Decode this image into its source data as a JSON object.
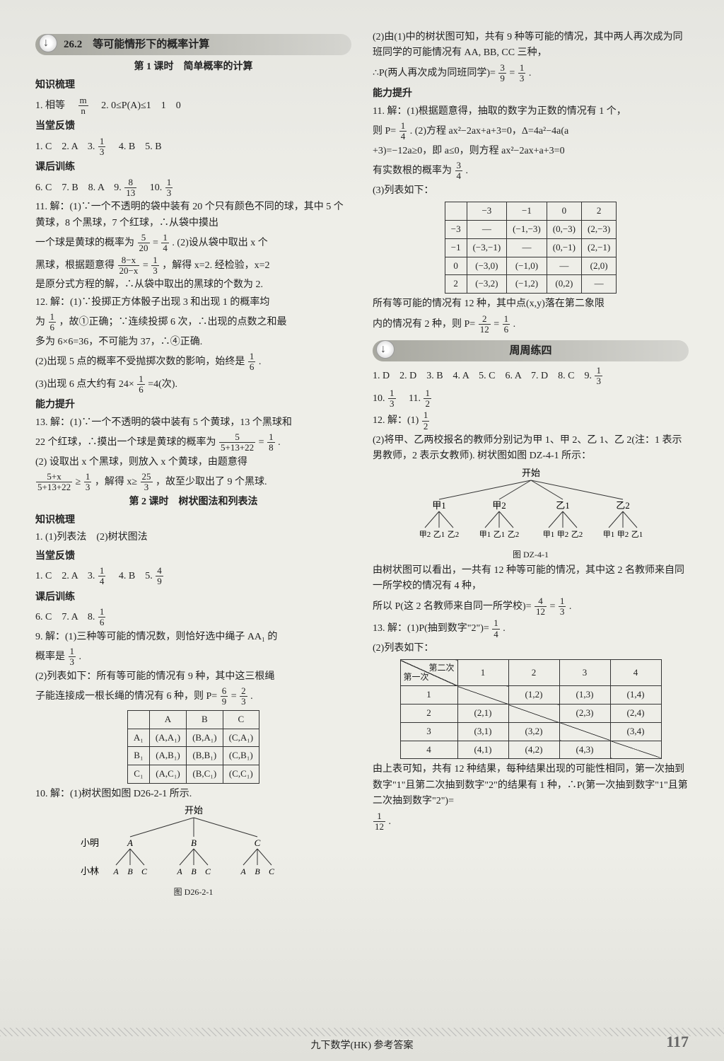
{
  "left": {
    "banner_arrow": true,
    "banner": "26.2　等可能情形下的概率计算",
    "sub1": "第 1 课时　简单概率的计算",
    "h_zhishi": "知识梳理",
    "l1a": "1. 相等　",
    "l1b": "　2. 0≤P(A)≤1　1　0",
    "frac_mn_n": "m",
    "frac_mn_d": "n",
    "h_dangtang": "当堂反馈",
    "l2": "1. C　2. A　3. ",
    "l2_fn": "1",
    "l2_fd": "3",
    "l2b": "　4. B　5. B",
    "h_kehou": "课后训练",
    "l3": "6. C　7. B　8. A　9. ",
    "l3_fn": "8",
    "l3_fd": "13",
    "l3b": "　10. ",
    "l3c_fn": "1",
    "l3c_fd": "3",
    "p11a": "11. 解：(1)∵一个不透明的袋中装有 20 个只有颜色不同的球，其中 5 个黄球，8 个黑球，7 个红球，∴从袋中摸出",
    "p11b_pre": "一个球是黄球的概率为",
    "p11b_f1n": "5",
    "p11b_f1d": "20",
    "p11b_mid": "=",
    "p11b_f2n": "1",
    "p11b_f2d": "4",
    "p11b_post": ". (2)设从袋中取出 x 个",
    "p11c_pre": "黑球，根据题意得",
    "p11c_f1n": "8−x",
    "p11c_f1d": "20−x",
    "p11c_mid": "=",
    "p11c_f2n": "1",
    "p11c_f2d": "3",
    "p11c_post": "，解得 x=2. 经检验，x=2",
    "p11d": "是原分式方程的解，∴从袋中取出的黑球的个数为 2.",
    "p12a": "12. 解：(1)∵投掷正方体骰子出现 3 和出现 1 的概率均",
    "p12b_pre": "为",
    "p12b_fn": "1",
    "p12b_fd": "6",
    "p12b_post": "，故①正确；∵连续投掷 6 次，∴出现的点数之和最",
    "p12c": "多为 6×6=36，不可能为 37，∴④正确.",
    "p12d_pre": "(2)出现 5 点的概率不受抛掷次数的影响，始终是",
    "p12d_fn": "1",
    "p12d_fd": "6",
    "p12d_post": ".",
    "p12e_pre": "(3)出现 6 点大约有 24×",
    "p12e_fn": "1",
    "p12e_fd": "6",
    "p12e_post": "=4(次).",
    "h_nengli": "能力提升",
    "p13a": "13. 解：(1)∵一个不透明的袋中装有 5 个黄球，13 个黑球和",
    "p13b_pre": "22 个红球，∴摸出一个球是黄球的概率为",
    "p13b_f1n": "5",
    "p13b_f1d": "5+13+22",
    "p13b_mid": "=",
    "p13b_f2n": "1",
    "p13b_f2d": "8",
    "p13b_post": ".",
    "p13c": "(2) 设取出 x 个黑球，则放入 x 个黄球，由题意得",
    "p13d_f1n": "5+x",
    "p13d_f1d": "5+13+22",
    "p13d_mid": "≥",
    "p13d_f2n": "1",
    "p13d_f2d": "3",
    "p13d_mid2": "，解得 x≥",
    "p13d_f3n": "25",
    "p13d_f3d": "3",
    "p13d_post": "，故至少取出了 9 个黑球.",
    "sub2": "第 2 课时　树状图法和列表法",
    "h_zhishi2": "知识梳理",
    "l_zhishi2": "1. (1)列表法　(2)树状图法",
    "h_dangtang2": "当堂反馈",
    "ld1": "1. C　2. A　3. ",
    "ld1_fn": "1",
    "ld1_fd": "4",
    "ld1b": "　4. B　5. ",
    "ld1c_fn": "4",
    "ld1c_fd": "9",
    "h_kehou2": "课后训练",
    "lk2": "6. C　7. A　8. ",
    "lk2_fn": "1",
    "lk2_fd": "6",
    "p9a": "9. 解：(1)三种等可能的情况数，则恰好选中绳子 AA₁ 的",
    "p9b_pre": "概率是",
    "p9b_fn": "1",
    "p9b_fd": "3",
    "p9b_post": ".",
    "p9c": "(2)列表如下：所有等可能的情况有 9 种，其中这三根绳",
    "p9d_pre": "子能连接成一根长绳的情况有 6 种，则 P=",
    "p9d_f1n": "6",
    "p9d_f1d": "9",
    "p9d_mid": "=",
    "p9d_f2n": "2",
    "p9d_f2d": "3",
    "p9d_post": ".",
    "table1": {
      "headers": [
        "",
        "A",
        "B",
        "C"
      ],
      "rows": [
        [
          "A₁",
          "(A,A₁)",
          "(B,A₁)",
          "(C,A₁)"
        ],
        [
          "B₁",
          "(A,B₁)",
          "(B,B₁)",
          "(C,B₁)"
        ],
        [
          "C₁",
          "(A,C₁)",
          "(B,C₁)",
          "(C,C₁)"
        ]
      ]
    },
    "p10a": "10. 解：(1)树状图如图 D26-2-1 所示.",
    "tree1_caption": "图 D26-2-1",
    "tree1_labels": {
      "start": "开始",
      "xm": "小明",
      "xl": "小林"
    }
  },
  "right": {
    "p2_1": "(2)由(1)中的树状图可知，共有 9 种等可能的情况，其中两人再次成为同班同学的可能情况有 AA, BB, CC 三种，",
    "p2_2_pre": "∴P(两人再次成为同班同学)=",
    "p2_2_f1n": "3",
    "p2_2_f1d": "9",
    "p2_2_mid": "=",
    "p2_2_f2n": "1",
    "p2_2_f2d": "3",
    "p2_2_post": ".",
    "h_nengli": "能力提升",
    "p11a": "11. 解：(1)根据题意得，抽取的数字为正数的情况有 1 个，",
    "p11b_pre": "则 P=",
    "p11b_fn": "1",
    "p11b_fd": "4",
    "p11b_post": ". (2)方程 ax²−2ax+a+3=0，Δ=4a²−4a(a",
    "p11c": "+3)=−12a≥0，即 a≤0，则方程 ax²−2ax+a+3=0",
    "p11d_pre": "有实数根的概率为",
    "p11d_fn": "3",
    "p11d_fd": "4",
    "p11d_post": ".",
    "p11e": "(3)列表如下：",
    "table2": {
      "headers": [
        "",
        "−3",
        "−1",
        "0",
        "2"
      ],
      "rows": [
        [
          "−3",
          "—",
          "(−1,−3)",
          "(0,−3)",
          "(2,−3)"
        ],
        [
          "−1",
          "(−3,−1)",
          "—",
          "(0,−1)",
          "(2,−1)"
        ],
        [
          "0",
          "(−3,0)",
          "(−1,0)",
          "—",
          "(2,0)"
        ],
        [
          "2",
          "(−3,2)",
          "(−1,2)",
          "(0,2)",
          "—"
        ]
      ]
    },
    "p11f": "所有等可能的情况有 12 种，其中点(x,y)落在第二象限",
    "p11g_pre": "内的情况有 2 种，则 P=",
    "p11g_f1n": "2",
    "p11g_f1d": "12",
    "p11g_mid": "=",
    "p11g_f2n": "1",
    "p11g_f2d": "6",
    "p11g_post": ".",
    "banner2": "周周练四",
    "lz1": "1. D　2. D　3. B　4. A　5. C　6. A　7. D　8. C　9. ",
    "lz1_fn": "1",
    "lz1_fd": "3",
    "lz2_pre": "10. ",
    "lz2_fn": "1",
    "lz2_fd": "3",
    "lz2_mid": "　11. ",
    "lz2b_fn": "1",
    "lz2b_fd": "2",
    "p12a_pre": "12. 解：(1)",
    "p12a_fn": "1",
    "p12a_fd": "2",
    "p12b": "(2)将甲、乙两校报名的教师分别记为甲 1、甲 2、乙 1、乙 2(注：1 表示男教师，2 表示女教师). 树状图如图 DZ-4-1 所示：",
    "tree2_caption": "图 DZ-4-1",
    "tree2_start": "开始",
    "p12c": "由树状图可以看出，一共有 12 种等可能的情况，其中这 2 名教师来自同一所学校的情况有 4 种，",
    "p12d_pre": "所以 P(这 2 名教师来自同一所学校)=",
    "p12d_f1n": "4",
    "p12d_f1d": "12",
    "p12d_mid": "=",
    "p12d_f2n": "1",
    "p12d_f2d": "3",
    "p12d_post": ".",
    "p13a_pre": "13. 解：(1)P(抽到数字\"2\")=",
    "p13a_fn": "1",
    "p13a_fd": "4",
    "p13a_post": ".",
    "p13b": "(2)列表如下：",
    "table3": {
      "diag_tl": "第一次",
      "diag_br": "第二次",
      "headers": [
        "1",
        "2",
        "3",
        "4"
      ],
      "rows": [
        [
          "1",
          "",
          "(1,2)",
          "(1,3)",
          "(1,4)"
        ],
        [
          "2",
          "(2,1)",
          "",
          "(2,3)",
          "(2,4)"
        ],
        [
          "3",
          "(3,1)",
          "(3,2)",
          "",
          "(3,4)"
        ],
        [
          "4",
          "(4,1)",
          "(4,2)",
          "(4,3)",
          ""
        ]
      ]
    },
    "p13c": "由上表可知，共有 12 种结果，每种结果出现的可能性相同，第一次抽到数字\"1\"且第二次抽到数字\"2\"的结果有 1 种，∴P(第一次抽到数字\"1\"且第二次抽到数字\"2\")=",
    "p13d_fn": "1",
    "p13d_fd": "12",
    "p13d_post": "."
  },
  "footer": "九下数学(HK) 参考答案",
  "pagenum": "117"
}
